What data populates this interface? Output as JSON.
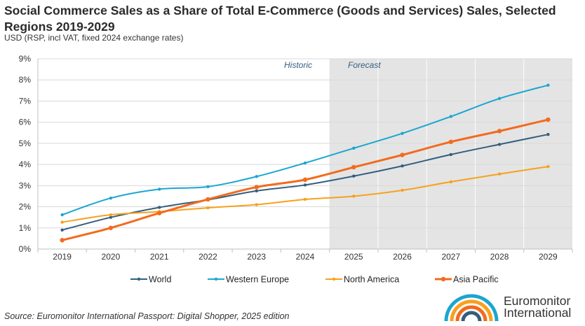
{
  "chart_data": {
    "type": "line",
    "title": "Social Commerce Sales as a Share of Total E-Commerce (Goods and Services) Sales, Selected Regions 2019-2029",
    "subtitle": "USD (RSP, incl VAT, fixed 2024 exchange rates)",
    "xlabel": "",
    "ylabel": "",
    "categories": [
      "2019",
      "2020",
      "2021",
      "2022",
      "2023",
      "2024",
      "2025",
      "2026",
      "2027",
      "2028",
      "2029"
    ],
    "ylim": [
      0,
      9
    ],
    "y_ticks": [
      "0%",
      "1%",
      "2%",
      "3%",
      "4%",
      "5%",
      "6%",
      "7%",
      "8%",
      "9%"
    ],
    "regions": {
      "historic_label": "Historic",
      "forecast_label": "Forecast",
      "forecast_start": "2025"
    },
    "legend_position": "bottom",
    "series": [
      {
        "name": "World",
        "color": "#335e7e",
        "values": [
          0.9,
          1.5,
          1.97,
          2.33,
          2.75,
          3.03,
          3.45,
          3.93,
          4.47,
          4.95,
          5.42
        ]
      },
      {
        "name": "Western Europe",
        "color": "#1aa6d1",
        "values": [
          1.62,
          2.41,
          2.83,
          2.95,
          3.43,
          4.07,
          4.77,
          5.47,
          6.27,
          7.12,
          7.75
        ]
      },
      {
        "name": "North America",
        "color": "#f7a11d",
        "values": [
          1.27,
          1.62,
          1.77,
          1.95,
          2.1,
          2.35,
          2.5,
          2.78,
          3.18,
          3.55,
          3.9
        ]
      },
      {
        "name": "Asia Pacific",
        "color": "#f26b1d",
        "values": [
          0.42,
          1.0,
          1.7,
          2.35,
          2.93,
          3.28,
          3.87,
          4.45,
          5.07,
          5.58,
          6.12
        ]
      }
    ]
  },
  "source": "Source: Euromonitor International Passport: Digital Shopper, 2025 edition",
  "logo": {
    "line1": "Euromonitor",
    "line2": "International"
  }
}
